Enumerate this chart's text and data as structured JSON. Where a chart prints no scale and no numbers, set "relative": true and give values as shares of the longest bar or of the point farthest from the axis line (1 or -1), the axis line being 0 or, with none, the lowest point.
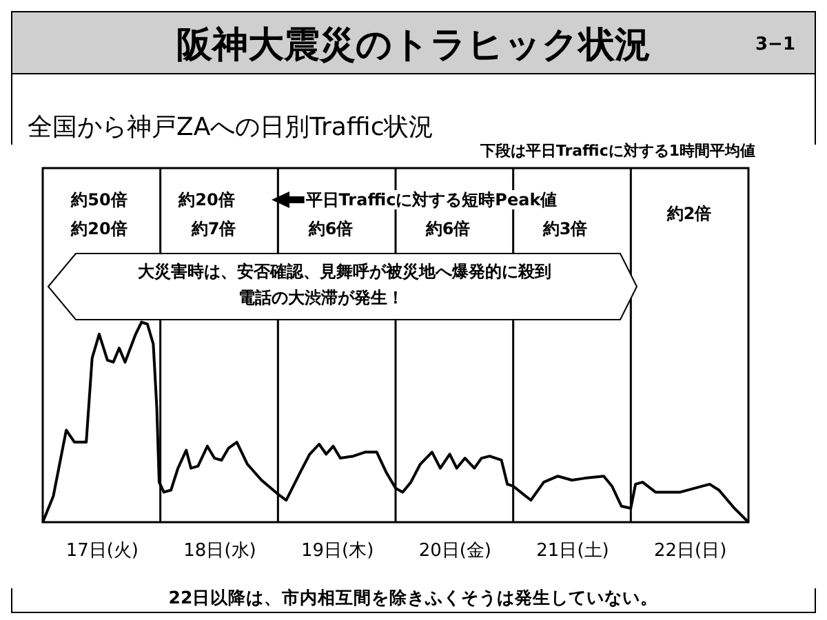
{
  "chart_data": {
    "type": "line",
    "title": "阪神大震災のトラヒック状況",
    "subtitle": "全国から神戸ZAへの日別Traffic状況",
    "annotations": [
      "3−1",
      "下段は平日Trafficに対する1時間平均値",
      "22日以降は、市内相互間を除きふくそうは発生していない。",
      "約50倍",
      "約20倍",
      "約20倍",
      "約7倍",
      "平日Trafficに対する短時Peak値",
      "約6倍",
      "約6倍",
      "約3倍",
      "約2倍",
      "大災害時は、安否確認、見舞呼が被災地へ爆発的に殺到",
      "電話の大渋滞が発生！"
    ],
    "x": [
      17.0,
      17.09,
      17.2,
      17.27,
      17.37,
      17.42,
      17.48,
      17.55,
      17.6,
      17.65,
      17.7,
      17.79,
      17.84,
      17.89,
      17.94,
      17.97,
      17.99,
      18.03,
      18.09,
      18.15,
      18.22,
      18.26,
      18.32,
      18.4,
      18.46,
      18.52,
      18.58,
      18.65,
      18.74,
      18.86,
      19.0,
      19.07,
      19.19,
      19.27,
      19.35,
      19.41,
      19.47,
      19.53,
      19.64,
      19.74,
      19.84,
      19.92,
      20.0,
      20.06,
      20.13,
      20.21,
      20.31,
      20.38,
      20.46,
      20.52,
      20.59,
      20.67,
      20.73,
      20.8,
      20.9,
      20.95,
      21.0,
      21.15,
      21.26,
      21.38,
      21.5,
      21.61,
      21.77,
      21.84,
      21.92,
      22.0,
      22.04,
      22.1,
      22.21,
      22.42,
      22.67,
      22.75,
      22.88,
      23.0
    ],
    "series": [
      {
        "color": "#000000",
        "values": [
          0,
          0.13,
          0.46,
          0.4,
          0.4,
          0.82,
          0.94,
          0.81,
          0.8,
          0.87,
          0.8,
          0.94,
          1.0,
          0.99,
          0.89,
          0.57,
          0.2,
          0.15,
          0.16,
          0.27,
          0.36,
          0.27,
          0.28,
          0.38,
          0.32,
          0.31,
          0.37,
          0.4,
          0.29,
          0.21,
          0.14,
          0.11,
          0.25,
          0.34,
          0.39,
          0.34,
          0.38,
          0.32,
          0.33,
          0.35,
          0.35,
          0.25,
          0.17,
          0.15,
          0.2,
          0.29,
          0.35,
          0.27,
          0.34,
          0.27,
          0.32,
          0.27,
          0.32,
          0.33,
          0.31,
          0.19,
          0.18,
          0.11,
          0.2,
          0.23,
          0.21,
          0.22,
          0.23,
          0.18,
          0.08,
          0.07,
          0.19,
          0.2,
          0.15,
          0.15,
          0.19,
          0.16,
          0.07,
          0
        ]
      }
    ],
    "relative": true,
    "xlim": [
      17,
      23
    ],
    "xticks": [
      {
        "value": 17.5,
        "label": "17日(火)"
      },
      {
        "value": 18.5,
        "label": "18日(水)"
      },
      {
        "value": 19.5,
        "label": "19日(木)"
      },
      {
        "value": 20.5,
        "label": "20日(金)"
      },
      {
        "value": 21.5,
        "label": "21日(土)"
      },
      {
        "value": 22.5,
        "label": "22日(日)"
      }
    ],
    "ref_lines": [
      {
        "axis": "x",
        "value": 18,
        "label": null,
        "color": "#000000"
      },
      {
        "axis": "x",
        "value": 19,
        "label": null,
        "color": "#000000"
      },
      {
        "axis": "x",
        "value": 20,
        "label": null,
        "color": "#000000"
      },
      {
        "axis": "x",
        "value": 21,
        "label": null,
        "color": "#000000"
      },
      {
        "axis": "x",
        "value": 22,
        "label": null,
        "color": "#000000"
      }
    ],
    "grid": false,
    "tick_labels": "x"
  }
}
